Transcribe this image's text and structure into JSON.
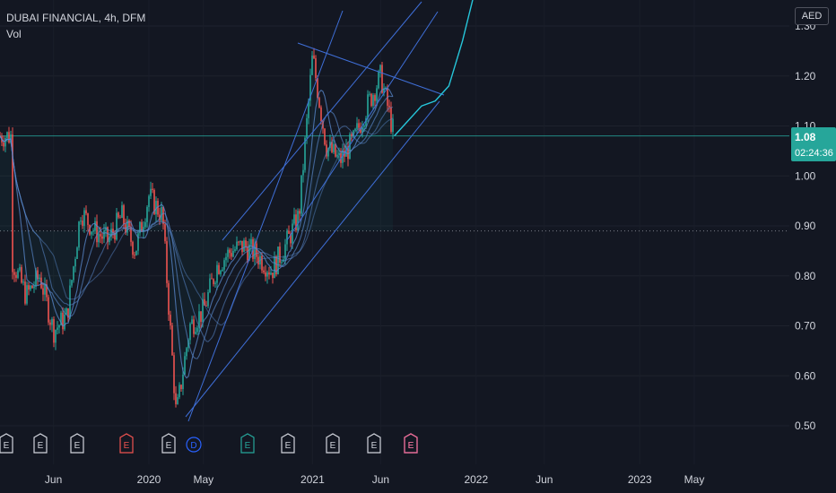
{
  "header": {
    "symbol_line": "DUBAI FINANCIAL, 4h, DFM",
    "indicator": "Vol",
    "currency": "AED"
  },
  "price_label": {
    "value": "1.08",
    "countdown": "02:24:36"
  },
  "colors": {
    "background": "#131722",
    "up": "#26a69a",
    "down": "#ef5350",
    "ribbon": "#5b8bd0",
    "trendline": "#3f6fd8",
    "axis_text": "#d1d4dc",
    "price_badge": "#26a69a"
  },
  "events": [
    {
      "letter": "E",
      "color": "#d1d4dc"
    },
    {
      "letter": "E",
      "color": "#d1d4dc"
    },
    {
      "letter": "E",
      "color": "#d1d4dc"
    },
    {
      "letter": "E",
      "color": "#ef5350"
    },
    {
      "letter": "E",
      "color": "#d1d4dc"
    },
    {
      "letter": "D",
      "color": "#2962ff"
    },
    {
      "letter": "E",
      "color": "#26a69a"
    },
    {
      "letter": "E",
      "color": "#d1d4dc"
    },
    {
      "letter": "E",
      "color": "#d1d4dc"
    },
    {
      "letter": "E",
      "color": "#d1d4dc"
    },
    {
      "letter": "E",
      "color": "#d1d4dc"
    },
    {
      "letter": "E",
      "color": "#f06292"
    }
  ],
  "chart_data": {
    "type": "candlestick",
    "title": "DUBAI FINANCIAL, 4h, DFM",
    "currency": "AED",
    "ylim": [
      0.445,
      1.335
    ],
    "y_ticks": [
      "0.50",
      "0.60",
      "0.70",
      "0.80",
      "0.90",
      "1.00",
      "1.10",
      "1.20",
      "1.30"
    ],
    "x_ticks": [
      "Jun",
      "2020",
      "May",
      "2021",
      "Jun",
      "2022",
      "Jun",
      "2023",
      "May"
    ],
    "last_price": 1.08,
    "reference_level": 0.89,
    "price_path": [
      [
        "2019-03",
        0.83
      ],
      [
        "2019-04",
        0.76
      ],
      [
        "2019-05",
        0.8
      ],
      [
        "2019-06",
        0.69
      ],
      [
        "2019-07",
        0.72
      ],
      [
        "2019-08",
        0.93
      ],
      [
        "2019-09",
        0.89
      ],
      [
        "2019-10",
        0.87
      ],
      [
        "2019-11",
        0.92
      ],
      [
        "2019-12",
        0.85
      ],
      [
        "2020-01",
        0.96
      ],
      [
        "2020-02",
        0.92
      ],
      [
        "2020-03",
        0.52
      ],
      [
        "2020-04",
        0.7
      ],
      [
        "2020-05",
        0.73
      ],
      [
        "2020-06",
        0.82
      ],
      [
        "2020-07",
        0.85
      ],
      [
        "2020-08",
        0.86
      ],
      [
        "2020-09",
        0.84
      ],
      [
        "2020-10",
        0.81
      ],
      [
        "2020-11",
        0.86
      ],
      [
        "2020-12",
        0.92
      ],
      [
        "2021-01",
        1.24
      ],
      [
        "2021-02",
        1.06
      ],
      [
        "2021-03",
        1.03
      ],
      [
        "2021-04",
        1.07
      ],
      [
        "2021-05",
        1.14
      ],
      [
        "2021-06",
        1.2
      ],
      [
        "2021-07",
        1.08
      ]
    ],
    "projection_path": [
      [
        "2021-07",
        1.08
      ],
      [
        "2021-08",
        1.11
      ],
      [
        "2021-09",
        1.14
      ],
      [
        "2021-10",
        1.15
      ],
      [
        "2021-11",
        1.18
      ],
      [
        "2021-12",
        1.27
      ],
      [
        "2022-01",
        1.38
      ]
    ]
  }
}
